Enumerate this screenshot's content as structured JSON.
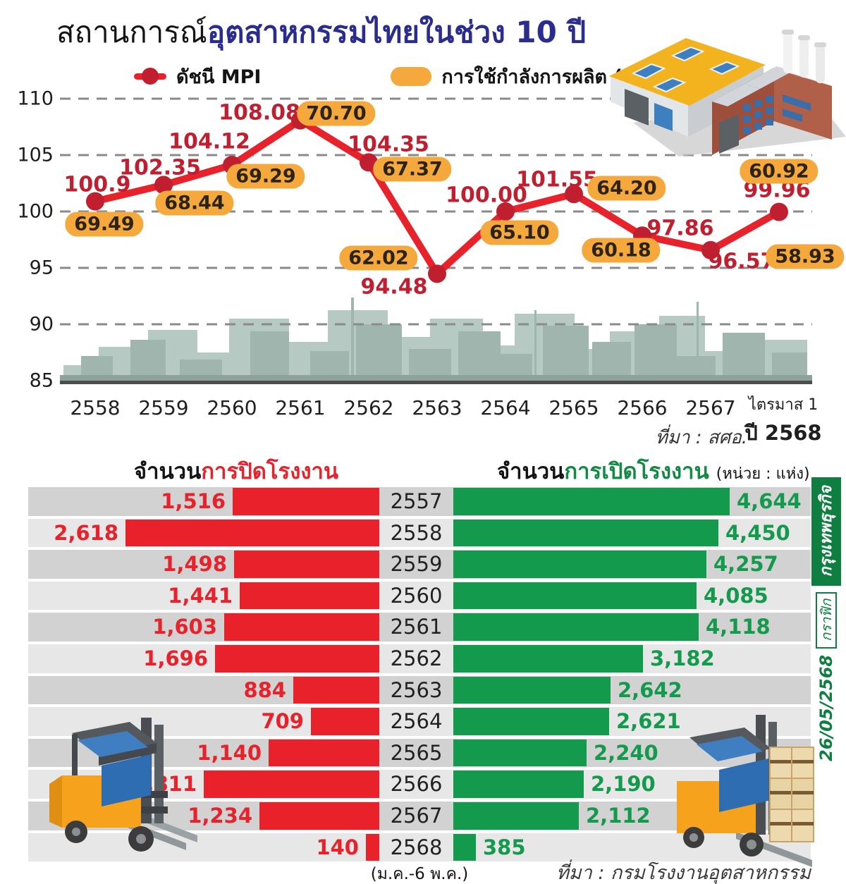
{
  "title": {
    "prefix": "สถานการณ์",
    "highlight": "อุตสาหกรรมไทยในช่วง 10 ปี"
  },
  "legend": {
    "mpi": "ดัชนี MPI",
    "capacity": "การใช้กำลังการผลิต (%)"
  },
  "sidebar": {
    "date": "26/05/2568",
    "label": "กราฟิก",
    "brand": "กรุงเทพธุรกิจ"
  },
  "colors": {
    "line_red": "#e8222b",
    "marker_red": "#c01f2f",
    "mpi_text_red": "#bf1f2e",
    "pill_orange": "#f5a93d",
    "bar_red": "#e8212b",
    "bar_green": "#149a4c",
    "title_navy": "#2b2d8e",
    "credit_green": "#0e7f41"
  },
  "chart_data": [
    {
      "type": "line",
      "title": "สถานการณ์อุตสาหกรรมไทยในช่วง 10 ปี",
      "categories": [
        "2558",
        "2559",
        "2560",
        "2561",
        "2562",
        "2563",
        "2564",
        "2565",
        "2566",
        "2567",
        "ไตรมาส 1 ปี 2568"
      ],
      "quarter_line1": "ไตรมาส 1",
      "quarter_line2": "ปี 2568",
      "series": [
        {
          "name": "ดัชนี MPI",
          "color": "#e8222b",
          "values": [
            100.9,
            102.35,
            104.12,
            108.08,
            104.35,
            94.48,
            100.0,
            101.55,
            97.86,
            96.57,
            99.96
          ],
          "labels": [
            "100.9",
            "102.35",
            "104.12",
            "108.08",
            "104.35",
            "94.48",
            "100.00",
            "101.55",
            "97.86",
            "96.57",
            "99.96"
          ]
        },
        {
          "name": "การใช้กำลังการผลิต (%)",
          "color": "#f5a93d",
          "values": [
            69.49,
            68.44,
            69.29,
            70.7,
            67.37,
            62.02,
            65.1,
            64.2,
            60.18,
            58.93,
            60.92
          ],
          "labels": [
            "69.49",
            "68.44",
            "69.29",
            "70.70",
            "67.37",
            "62.02",
            "65.10",
            "64.20",
            "60.18",
            "58.93",
            "60.92"
          ]
        }
      ],
      "ylim": [
        85,
        110
      ],
      "yticks": [
        110,
        105,
        100,
        95,
        90,
        85
      ],
      "grid": true,
      "legend_position": "top",
      "source": "ที่มา : สศอ."
    },
    {
      "type": "bar",
      "orientation": "horizontal-diverging",
      "title_close_prefix": "จำนวน",
      "title_close": "การปิดโรงงาน",
      "title_open_prefix": "จำนวน",
      "title_open": "การเปิดโรงงาน",
      "unit": "(หน่วย : แห่ง)",
      "categories": [
        "2557",
        "2558",
        "2559",
        "2560",
        "2561",
        "2562",
        "2563",
        "2564",
        "2565",
        "2566",
        "2567",
        "2568"
      ],
      "series": [
        {
          "name": "การปิดโรงงาน",
          "color": "#e8212b",
          "values": [
            1516,
            2618,
            1498,
            1441,
            1603,
            1696,
            884,
            709,
            1140,
            1811,
            1234,
            140
          ]
        },
        {
          "name": "การเปิดโรงงาน",
          "color": "#149a4c",
          "values": [
            4644,
            4450,
            4257,
            4085,
            4118,
            3182,
            2642,
            2621,
            2240,
            2190,
            2112,
            385
          ]
        }
      ],
      "note": "(ม.ค.-6 พ.ค.)",
      "source": "ที่มา : กรมโรงงานอุตสาหกรรม"
    }
  ]
}
